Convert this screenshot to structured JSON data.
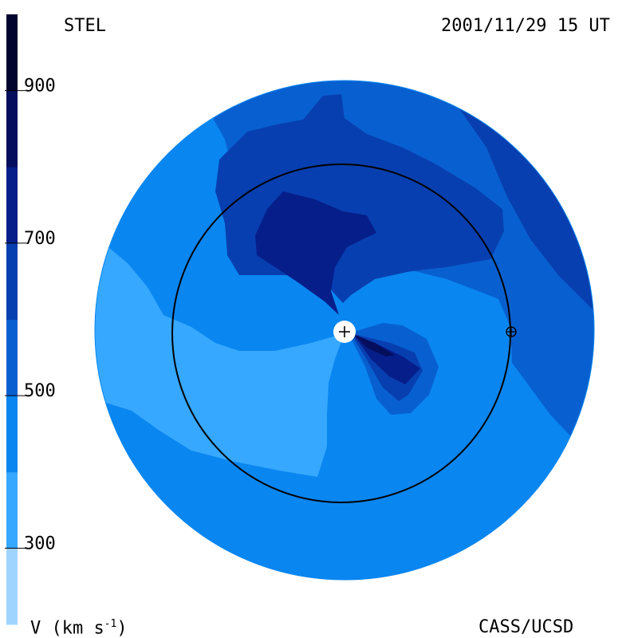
{
  "labels": {
    "instrument": "STEL",
    "datetime": "2001/11/29 15 UT",
    "credit": "CASS/UCSD",
    "colorbar_unit": "V (km s",
    "colorbar_unit_exp": "-1",
    "colorbar_unit_close": ")"
  },
  "chart_data": {
    "type": "heatmap",
    "title": "",
    "colorbar": {
      "label": "V (km s-1)",
      "range": [
        200,
        1000
      ],
      "ticks": [
        300,
        500,
        700,
        900
      ],
      "levels": [
        {
          "from": 200,
          "to": 300,
          "color": "#9fd4ff"
        },
        {
          "from": 300,
          "to": 400,
          "color": "#36a8ff"
        },
        {
          "from": 400,
          "to": 500,
          "color": "#0a86f0"
        },
        {
          "from": 500,
          "to": 600,
          "color": "#0860d0"
        },
        {
          "from": 600,
          "to": 700,
          "color": "#083fb0"
        },
        {
          "from": 700,
          "to": 800,
          "color": "#061e8a"
        },
        {
          "from": 800,
          "to": 900,
          "color": "#040e5c"
        },
        {
          "from": 900,
          "to": 1000,
          "color": "#02052e"
        }
      ]
    },
    "markers": [
      {
        "name": "sun",
        "symbol": "+"
      },
      {
        "name": "earth",
        "symbol": "⊕"
      }
    ]
  }
}
